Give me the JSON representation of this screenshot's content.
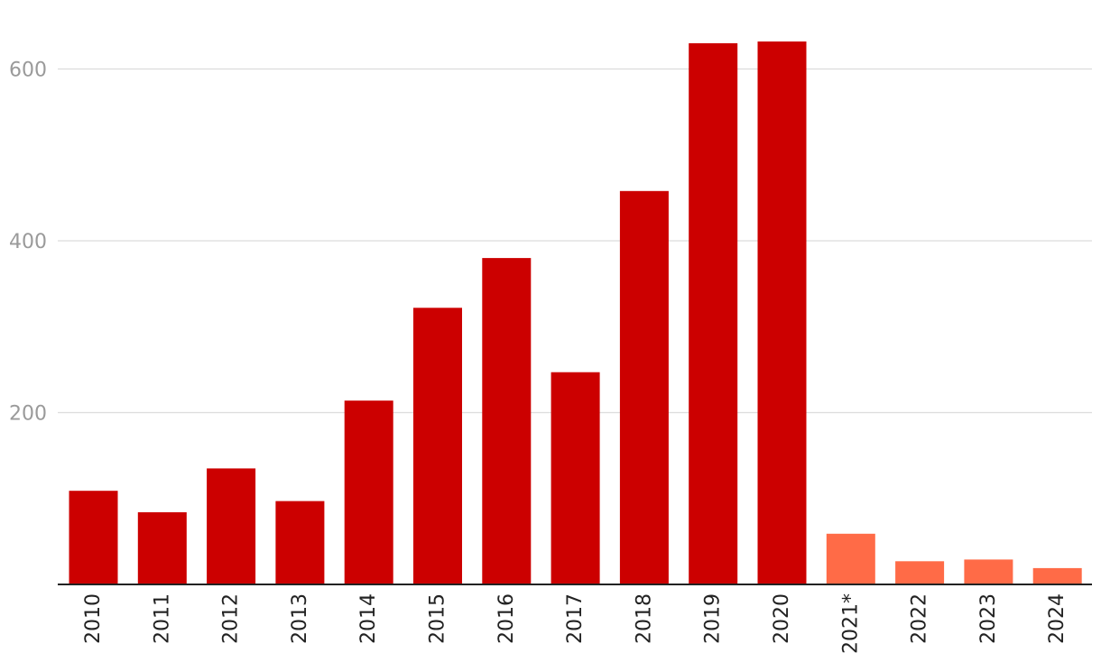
{
  "chart_data": {
    "type": "bar",
    "categories": [
      "2010",
      "2011",
      "2012",
      "2013",
      "2014",
      "2015",
      "2016",
      "2017",
      "2018",
      "2019",
      "2020",
      "2021*",
      "2022",
      "2023",
      "2024"
    ],
    "values": [
      109,
      84,
      135,
      97,
      214,
      322,
      380,
      247,
      458,
      630,
      632,
      59,
      27,
      29,
      19
    ],
    "y_ticks": [
      200,
      400,
      600
    ],
    "ylim": [
      0,
      660
    ],
    "grid": true,
    "colors": {
      "actual": "#cc0000",
      "highlight": "#ff6b47",
      "grid": "#dcdcdc",
      "axis": "#222222",
      "ytick_text": "#9a9a9a",
      "xtick_text": "#222222"
    },
    "highlighted_categories": [
      "2021*",
      "2022",
      "2023",
      "2024"
    ]
  }
}
